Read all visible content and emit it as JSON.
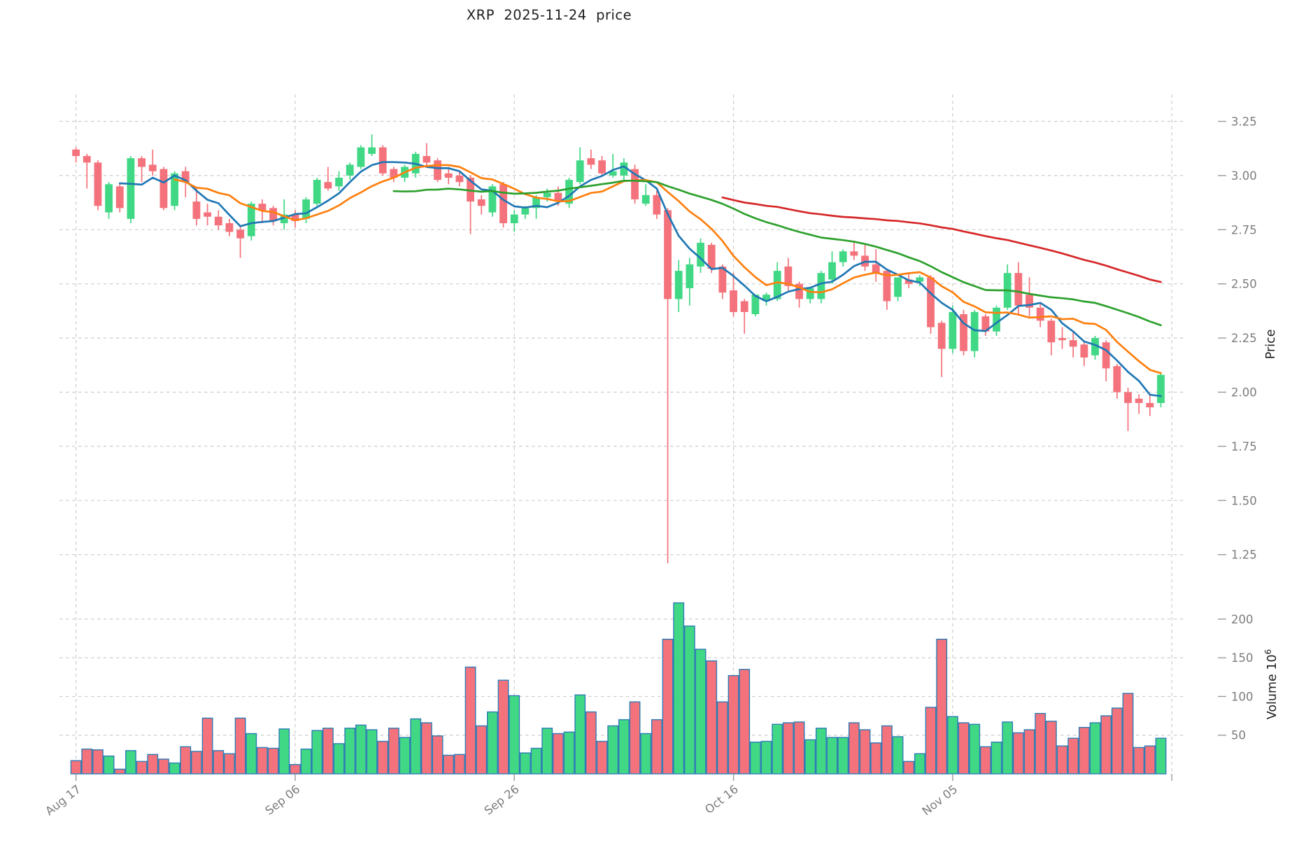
{
  "title": "XRP  2025-11-24  price",
  "axes": {
    "price_axis_label": "Price",
    "volume_axis_label": "Volume",
    "volume_unit_base": "10",
    "volume_unit_exponent": "6",
    "price_ticks": [
      {
        "label": "3.25",
        "value": 3.25
      },
      {
        "label": "3.00",
        "value": 3.0
      },
      {
        "label": "2.75",
        "value": 2.75
      },
      {
        "label": "2.50",
        "value": 2.5
      },
      {
        "label": "2.25",
        "value": 2.25
      },
      {
        "label": "2.00",
        "value": 2.0
      },
      {
        "label": "1.75",
        "value": 1.75
      },
      {
        "label": "1.50",
        "value": 1.5
      },
      {
        "label": "1.25",
        "value": 1.25
      }
    ],
    "volume_ticks": [
      {
        "label": "200",
        "value": 200
      },
      {
        "label": "150",
        "value": 150
      },
      {
        "label": "100",
        "value": 100
      },
      {
        "label": "50",
        "value": 50
      }
    ],
    "date_ticks": [
      {
        "label": "Aug 17",
        "day": 0
      },
      {
        "label": "Sep 06",
        "day": 20
      },
      {
        "label": "Sep 26",
        "day": 40
      },
      {
        "label": "Oct 16",
        "day": 60
      },
      {
        "label": "Nov 05",
        "day": 80
      },
      {
        "label": "",
        "day": 100
      }
    ]
  },
  "style": {
    "up_color": "#41d885",
    "down_color": "#f4727c",
    "volume_edge_color": "#2d7cb5",
    "grid_color": "#cccccc",
    "tick_mark_color": "#9a9a9a",
    "tick_label_color": "#7c7c7c",
    "axis_title_color": "#1f1f1f",
    "ma_colors": {
      "sma5": "#1f77b4",
      "sma10": "#ff7f0e",
      "sma30": "#2ca02c",
      "sma60": "#d62728"
    }
  },
  "chart_data": {
    "type": "candlestick+volume",
    "symbol": "XRP",
    "as_of_date": "2025-11-24",
    "title": "XRP  2025-11-24  price",
    "x_start": "2025-08-17",
    "x_end": "2025-11-24",
    "grid": true,
    "price_ylim": [
      1.15,
      3.35
    ],
    "volume_unit": 1000000,
    "moving_averages": [
      {
        "name": "SMA5",
        "window": 5,
        "color": "#1f77b4"
      },
      {
        "name": "SMA10",
        "window": 10,
        "color": "#ff7f0e"
      },
      {
        "name": "SMA30",
        "window": 30,
        "color": "#2ca02c"
      },
      {
        "name": "SMA60",
        "window": 60,
        "color": "#d62728"
      }
    ],
    "candles": [
      {
        "d": "Aug 17",
        "o": 3.12,
        "h": 3.13,
        "l": 3.06,
        "c": 3.09,
        "v": 17
      },
      {
        "d": "Aug 18",
        "o": 3.09,
        "h": 3.1,
        "l": 2.94,
        "c": 3.06,
        "v": 32
      },
      {
        "d": "Aug 19",
        "o": 3.06,
        "h": 3.07,
        "l": 2.84,
        "c": 2.86,
        "v": 31
      },
      {
        "d": "Aug 20",
        "o": 2.83,
        "h": 2.97,
        "l": 2.8,
        "c": 2.96,
        "v": 23
      },
      {
        "d": "Aug 21",
        "o": 2.95,
        "h": 2.96,
        "l": 2.83,
        "c": 2.85,
        "v": 6
      },
      {
        "d": "Aug 22",
        "o": 2.8,
        "h": 3.09,
        "l": 2.78,
        "c": 3.08,
        "v": 30
      },
      {
        "d": "Aug 23",
        "o": 3.08,
        "h": 3.09,
        "l": 2.97,
        "c": 3.04,
        "v": 16
      },
      {
        "d": "Aug 24",
        "o": 3.05,
        "h": 3.12,
        "l": 3.0,
        "c": 3.02,
        "v": 25
      },
      {
        "d": "Aug 25",
        "o": 3.03,
        "h": 3.04,
        "l": 2.84,
        "c": 2.85,
        "v": 19
      },
      {
        "d": "Aug 26",
        "o": 2.86,
        "h": 3.02,
        "l": 2.84,
        "c": 3.01,
        "v": 14
      },
      {
        "d": "Aug 27",
        "o": 3.02,
        "h": 3.04,
        "l": 2.9,
        "c": 2.97,
        "v": 35
      },
      {
        "d": "Aug 28",
        "o": 2.88,
        "h": 2.94,
        "l": 2.77,
        "c": 2.8,
        "v": 29
      },
      {
        "d": "Aug 29",
        "o": 2.83,
        "h": 2.87,
        "l": 2.77,
        "c": 2.81,
        "v": 72
      },
      {
        "d": "Aug 30",
        "o": 2.81,
        "h": 2.84,
        "l": 2.75,
        "c": 2.77,
        "v": 30
      },
      {
        "d": "Aug 31",
        "o": 2.78,
        "h": 2.8,
        "l": 2.72,
        "c": 2.74,
        "v": 26
      },
      {
        "d": "Sep 01",
        "o": 2.75,
        "h": 2.77,
        "l": 2.62,
        "c": 2.71,
        "v": 72
      },
      {
        "d": "Sep 02",
        "o": 2.72,
        "h": 2.88,
        "l": 2.7,
        "c": 2.87,
        "v": 52
      },
      {
        "d": "Sep 03",
        "o": 2.87,
        "h": 2.89,
        "l": 2.78,
        "c": 2.84,
        "v": 34
      },
      {
        "d": "Sep 04",
        "o": 2.85,
        "h": 2.86,
        "l": 2.77,
        "c": 2.79,
        "v": 33
      },
      {
        "d": "Sep 05",
        "o": 2.78,
        "h": 2.89,
        "l": 2.75,
        "c": 2.82,
        "v": 58
      },
      {
        "d": "Sep 06",
        "o": 2.82,
        "h": 2.84,
        "l": 2.76,
        "c": 2.79,
        "v": 12
      },
      {
        "d": "Sep 07",
        "o": 2.8,
        "h": 2.9,
        "l": 2.78,
        "c": 2.89,
        "v": 32
      },
      {
        "d": "Sep 08",
        "o": 2.87,
        "h": 2.99,
        "l": 2.86,
        "c": 2.98,
        "v": 56
      },
      {
        "d": "Sep 09",
        "o": 2.97,
        "h": 3.04,
        "l": 2.93,
        "c": 2.94,
        "v": 59
      },
      {
        "d": "Sep 10",
        "o": 2.95,
        "h": 3.02,
        "l": 2.93,
        "c": 2.99,
        "v": 39
      },
      {
        "d": "Sep 11",
        "o": 3.0,
        "h": 3.06,
        "l": 2.98,
        "c": 3.05,
        "v": 59
      },
      {
        "d": "Sep 12",
        "o": 3.04,
        "h": 3.14,
        "l": 3.03,
        "c": 3.13,
        "v": 63
      },
      {
        "d": "Sep 13",
        "o": 3.1,
        "h": 3.19,
        "l": 3.09,
        "c": 3.13,
        "v": 57
      },
      {
        "d": "Sep 14",
        "o": 3.13,
        "h": 3.14,
        "l": 3.0,
        "c": 3.01,
        "v": 42
      },
      {
        "d": "Sep 15",
        "o": 3.03,
        "h": 3.04,
        "l": 2.97,
        "c": 2.99,
        "v": 59
      },
      {
        "d": "Sep 16",
        "o": 2.99,
        "h": 3.05,
        "l": 2.97,
        "c": 3.04,
        "v": 47
      },
      {
        "d": "Sep 17",
        "o": 3.01,
        "h": 3.11,
        "l": 2.99,
        "c": 3.1,
        "v": 71
      },
      {
        "d": "Sep 18",
        "o": 3.09,
        "h": 3.15,
        "l": 3.04,
        "c": 3.06,
        "v": 66
      },
      {
        "d": "Sep 19",
        "o": 3.07,
        "h": 3.08,
        "l": 2.97,
        "c": 2.98,
        "v": 49
      },
      {
        "d": "Sep 20",
        "o": 3.01,
        "h": 3.04,
        "l": 2.96,
        "c": 2.99,
        "v": 24
      },
      {
        "d": "Sep 21",
        "o": 3.0,
        "h": 3.02,
        "l": 2.95,
        "c": 2.97,
        "v": 25
      },
      {
        "d": "Sep 22",
        "o": 2.99,
        "h": 3.0,
        "l": 2.73,
        "c": 2.88,
        "v": 138
      },
      {
        "d": "Sep 23",
        "o": 2.89,
        "h": 2.91,
        "l": 2.82,
        "c": 2.86,
        "v": 62
      },
      {
        "d": "Sep 24",
        "o": 2.83,
        "h": 2.96,
        "l": 2.81,
        "c": 2.95,
        "v": 80
      },
      {
        "d": "Sep 25",
        "o": 2.96,
        "h": 2.97,
        "l": 2.76,
        "c": 2.78,
        "v": 121
      },
      {
        "d": "Sep 26",
        "o": 2.78,
        "h": 2.84,
        "l": 2.74,
        "c": 2.82,
        "v": 101
      },
      {
        "d": "Sep 27",
        "o": 2.82,
        "h": 2.86,
        "l": 2.8,
        "c": 2.85,
        "v": 27
      },
      {
        "d": "Sep 28",
        "o": 2.85,
        "h": 2.91,
        "l": 2.8,
        "c": 2.9,
        "v": 33
      },
      {
        "d": "Sep 29",
        "o": 2.9,
        "h": 2.94,
        "l": 2.88,
        "c": 2.92,
        "v": 59
      },
      {
        "d": "Sep 30",
        "o": 2.92,
        "h": 2.95,
        "l": 2.86,
        "c": 2.88,
        "v": 52
      },
      {
        "d": "Oct 01",
        "o": 2.87,
        "h": 2.99,
        "l": 2.85,
        "c": 2.98,
        "v": 54
      },
      {
        "d": "Oct 02",
        "o": 2.97,
        "h": 3.13,
        "l": 2.96,
        "c": 3.07,
        "v": 102
      },
      {
        "d": "Oct 03",
        "o": 3.08,
        "h": 3.12,
        "l": 3.03,
        "c": 3.05,
        "v": 80
      },
      {
        "d": "Oct 04",
        "o": 3.07,
        "h": 3.09,
        "l": 3.0,
        "c": 3.01,
        "v": 42
      },
      {
        "d": "Oct 05",
        "o": 3.0,
        "h": 3.1,
        "l": 2.99,
        "c": 3.02,
        "v": 62
      },
      {
        "d": "Oct 06",
        "o": 3.0,
        "h": 3.08,
        "l": 2.98,
        "c": 3.06,
        "v": 70
      },
      {
        "d": "Oct 07",
        "o": 3.03,
        "h": 3.05,
        "l": 2.87,
        "c": 2.89,
        "v": 93
      },
      {
        "d": "Oct 08",
        "o": 2.87,
        "h": 2.96,
        "l": 2.86,
        "c": 2.91,
        "v": 52
      },
      {
        "d": "Oct 09",
        "o": 2.91,
        "h": 2.93,
        "l": 2.8,
        "c": 2.82,
        "v": 70
      },
      {
        "d": "Oct 10",
        "o": 2.84,
        "h": 2.85,
        "l": 1.21,
        "c": 2.43,
        "v": 174
      },
      {
        "d": "Oct 11",
        "o": 2.43,
        "h": 2.61,
        "l": 2.37,
        "c": 2.56,
        "v": 221
      },
      {
        "d": "Oct 12",
        "o": 2.48,
        "h": 2.62,
        "l": 2.4,
        "c": 2.59,
        "v": 191
      },
      {
        "d": "Oct 13",
        "o": 2.58,
        "h": 2.71,
        "l": 2.55,
        "c": 2.69,
        "v": 161
      },
      {
        "d": "Oct 14",
        "o": 2.68,
        "h": 2.69,
        "l": 2.55,
        "c": 2.57,
        "v": 146
      },
      {
        "d": "Oct 15",
        "o": 2.58,
        "h": 2.59,
        "l": 2.43,
        "c": 2.46,
        "v": 93
      },
      {
        "d": "Oct 16",
        "o": 2.47,
        "h": 2.55,
        "l": 2.35,
        "c": 2.37,
        "v": 127
      },
      {
        "d": "Oct 17",
        "o": 2.42,
        "h": 2.43,
        "l": 2.27,
        "c": 2.37,
        "v": 135
      },
      {
        "d": "Oct 18",
        "o": 2.36,
        "h": 2.45,
        "l": 2.35,
        "c": 2.45,
        "v": 41
      },
      {
        "d": "Oct 19",
        "o": 2.42,
        "h": 2.46,
        "l": 2.4,
        "c": 2.45,
        "v": 42
      },
      {
        "d": "Oct 20",
        "o": 2.43,
        "h": 2.6,
        "l": 2.42,
        "c": 2.56,
        "v": 64
      },
      {
        "d": "Oct 21",
        "o": 2.58,
        "h": 2.62,
        "l": 2.47,
        "c": 2.49,
        "v": 66
      },
      {
        "d": "Oct 22",
        "o": 2.5,
        "h": 2.51,
        "l": 2.39,
        "c": 2.43,
        "v": 67
      },
      {
        "d": "Oct 23",
        "o": 2.43,
        "h": 2.48,
        "l": 2.41,
        "c": 2.48,
        "v": 44
      },
      {
        "d": "Oct 24",
        "o": 2.43,
        "h": 2.56,
        "l": 2.41,
        "c": 2.55,
        "v": 59
      },
      {
        "d": "Oct 25",
        "o": 2.52,
        "h": 2.65,
        "l": 2.5,
        "c": 2.6,
        "v": 47
      },
      {
        "d": "Oct 26",
        "o": 2.6,
        "h": 2.66,
        "l": 2.58,
        "c": 2.65,
        "v": 47
      },
      {
        "d": "Oct 27",
        "o": 2.65,
        "h": 2.7,
        "l": 2.61,
        "c": 2.63,
        "v": 66
      },
      {
        "d": "Oct 28",
        "o": 2.63,
        "h": 2.68,
        "l": 2.56,
        "c": 2.58,
        "v": 57
      },
      {
        "d": "Oct 29",
        "o": 2.59,
        "h": 2.66,
        "l": 2.51,
        "c": 2.55,
        "v": 40
      },
      {
        "d": "Oct 30",
        "o": 2.56,
        "h": 2.57,
        "l": 2.38,
        "c": 2.42,
        "v": 62
      },
      {
        "d": "Oct 31",
        "o": 2.44,
        "h": 2.53,
        "l": 2.42,
        "c": 2.53,
        "v": 48
      },
      {
        "d": "Nov 01",
        "o": 2.52,
        "h": 2.55,
        "l": 2.48,
        "c": 2.5,
        "v": 16
      },
      {
        "d": "Nov 02",
        "o": 2.51,
        "h": 2.54,
        "l": 2.49,
        "c": 2.53,
        "v": 26
      },
      {
        "d": "Nov 03",
        "o": 2.53,
        "h": 2.54,
        "l": 2.27,
        "c": 2.3,
        "v": 86
      },
      {
        "d": "Nov 04",
        "o": 2.32,
        "h": 2.33,
        "l": 2.07,
        "c": 2.2,
        "v": 174
      },
      {
        "d": "Nov 05",
        "o": 2.2,
        "h": 2.4,
        "l": 2.18,
        "c": 2.37,
        "v": 74
      },
      {
        "d": "Nov 06",
        "o": 2.36,
        "h": 2.38,
        "l": 2.17,
        "c": 2.19,
        "v": 66
      },
      {
        "d": "Nov 07",
        "o": 2.19,
        "h": 2.38,
        "l": 2.16,
        "c": 2.37,
        "v": 64
      },
      {
        "d": "Nov 08",
        "o": 2.35,
        "h": 2.36,
        "l": 2.26,
        "c": 2.28,
        "v": 35
      },
      {
        "d": "Nov 09",
        "o": 2.28,
        "h": 2.4,
        "l": 2.26,
        "c": 2.39,
        "v": 41
      },
      {
        "d": "Nov 10",
        "o": 2.39,
        "h": 2.59,
        "l": 2.38,
        "c": 2.55,
        "v": 67
      },
      {
        "d": "Nov 11",
        "o": 2.55,
        "h": 2.6,
        "l": 2.36,
        "c": 2.4,
        "v": 53
      },
      {
        "d": "Nov 12",
        "o": 2.45,
        "h": 2.53,
        "l": 2.35,
        "c": 2.39,
        "v": 57
      },
      {
        "d": "Nov 13",
        "o": 2.39,
        "h": 2.41,
        "l": 2.3,
        "c": 2.33,
        "v": 78
      },
      {
        "d": "Nov 14",
        "o": 2.33,
        "h": 2.34,
        "l": 2.17,
        "c": 2.23,
        "v": 68
      },
      {
        "d": "Nov 15",
        "o": 2.25,
        "h": 2.3,
        "l": 2.2,
        "c": 2.24,
        "v": 36
      },
      {
        "d": "Nov 16",
        "o": 2.24,
        "h": 2.28,
        "l": 2.16,
        "c": 2.21,
        "v": 46
      },
      {
        "d": "Nov 17",
        "o": 2.22,
        "h": 2.23,
        "l": 2.12,
        "c": 2.16,
        "v": 60
      },
      {
        "d": "Nov 18",
        "o": 2.17,
        "h": 2.26,
        "l": 2.15,
        "c": 2.25,
        "v": 66
      },
      {
        "d": "Nov 19",
        "o": 2.23,
        "h": 2.24,
        "l": 2.05,
        "c": 2.11,
        "v": 75
      },
      {
        "d": "Nov 20",
        "o": 2.12,
        "h": 2.13,
        "l": 1.97,
        "c": 2.0,
        "v": 85
      },
      {
        "d": "Nov 21",
        "o": 2.0,
        "h": 2.02,
        "l": 1.82,
        "c": 1.95,
        "v": 104
      },
      {
        "d": "Nov 22",
        "o": 1.97,
        "h": 1.99,
        "l": 1.9,
        "c": 1.95,
        "v": 34
      },
      {
        "d": "Nov 23",
        "o": 1.95,
        "h": 1.99,
        "l": 1.89,
        "c": 1.93,
        "v": 36
      },
      {
        "d": "Nov 24",
        "o": 1.95,
        "h": 2.09,
        "l": 1.93,
        "c": 2.08,
        "v": 46
      }
    ]
  }
}
